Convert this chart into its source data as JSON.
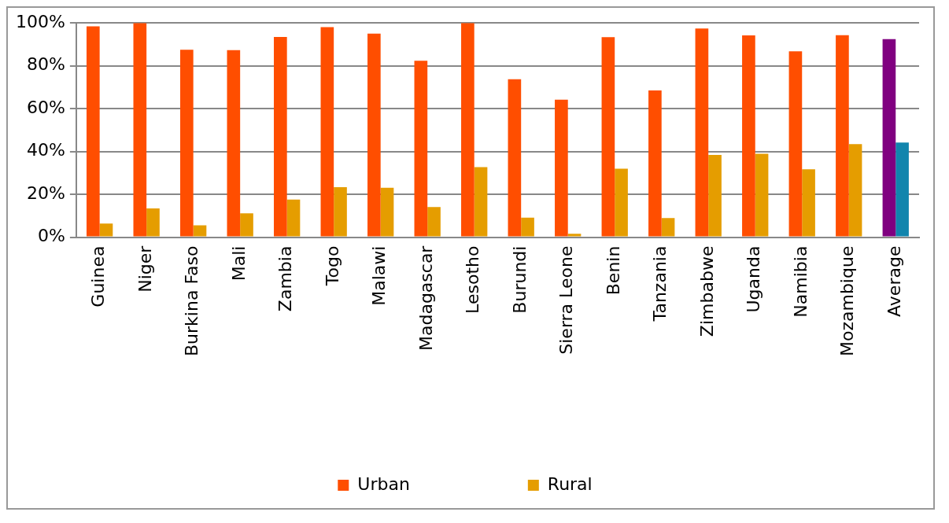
{
  "chart_data": {
    "type": "bar",
    "categories": [
      "Guinea",
      "Niger",
      "Burkina Faso",
      "Mali",
      "Zambia",
      "Togo",
      "Malawi",
      "Madagascar",
      "Lesotho",
      "Burundi",
      "Sierra Leone",
      "Benin",
      "Tanzania",
      "Zimbabwe",
      "Uganda",
      "Namibia",
      "Mozambique",
      "Average"
    ],
    "series": [
      {
        "name": "Urban",
        "color": "#ff4e00",
        "colors": [
          "#ff4e00",
          "#ff4e00",
          "#ff4e00",
          "#ff4e00",
          "#ff4e00",
          "#ff4e00",
          "#ff4e00",
          "#ff4e00",
          "#ff4e00",
          "#ff4e00",
          "#ff4e00",
          "#ff4e00",
          "#ff4e00",
          "#ff4e00",
          "#ff4e00",
          "#ff4e00",
          "#ff4e00",
          "#800080"
        ],
        "values": [
          98.4,
          100,
          87.5,
          87.3,
          93.5,
          98.1,
          95.0,
          82.4,
          100,
          73.7,
          64.2,
          93.4,
          68.5,
          97.4,
          94.2,
          86.8,
          94.3,
          92.5
        ]
      },
      {
        "name": "Rural",
        "color": "#e59d00",
        "colors": [
          "#e59d00",
          "#e59d00",
          "#e59d00",
          "#e59d00",
          "#e59d00",
          "#e59d00",
          "#e59d00",
          "#e59d00",
          "#e59d00",
          "#e59d00",
          "#e59d00",
          "#e59d00",
          "#e59d00",
          "#e59d00",
          "#e59d00",
          "#e59d00",
          "#e59d00",
          "#1185ad"
        ],
        "values": [
          6.4,
          13.4,
          5.5,
          11.1,
          17.6,
          23.3,
          23.1,
          14.1,
          32.7,
          9.1,
          1.6,
          32.0,
          8.9,
          38.4,
          38.9,
          31.7,
          43.4,
          44.2
        ]
      }
    ],
    "ylim": [
      0,
      100
    ],
    "yticks": [
      {
        "value": 0,
        "label": "0%"
      },
      {
        "value": 20,
        "label": "20%"
      },
      {
        "value": 40,
        "label": "40%"
      },
      {
        "value": 60,
        "label": "60%"
      },
      {
        "value": 80,
        "label": "80%"
      },
      {
        "value": 100,
        "label": "100%"
      }
    ],
    "grid": "y",
    "legend": "bottom"
  }
}
